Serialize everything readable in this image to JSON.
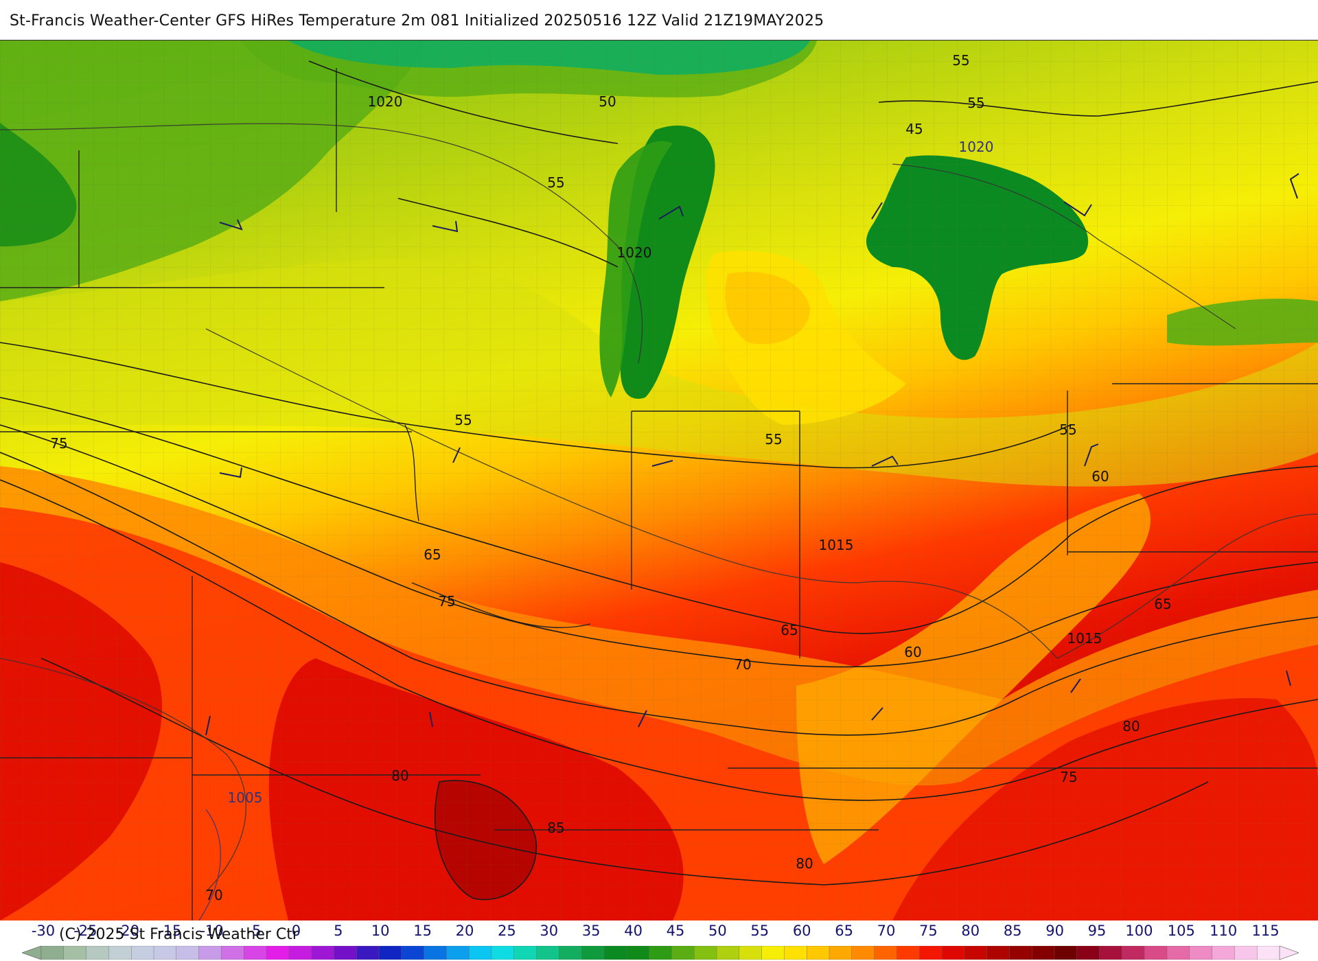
{
  "header": {
    "title": "St-Francis Weather-Center GFS HiRes Temperature 2m  081 Initialized 20250516 12Z Valid 21Z19MAY2025"
  },
  "footer": {
    "copyright": "(C) 2025 St Francis Weather Ctr"
  },
  "legend": {
    "units": "",
    "ticks": [
      "-30",
      "-25",
      "-20",
      "-15",
      "-10",
      "-5",
      "0",
      "5",
      "10",
      "15",
      "20",
      "25",
      "30",
      "35",
      "40",
      "45",
      "50",
      "55",
      "60",
      "65",
      "70",
      "75",
      "80",
      "85",
      "90",
      "95",
      "100",
      "105",
      "110",
      "115"
    ],
    "colors": [
      "#8fae8f",
      "#a5bfa5",
      "#b5c9c0",
      "#c2d0d6",
      "#c5cde0",
      "#c7c8e6",
      "#c6bde8",
      "#c79be8",
      "#cf70e6",
      "#d845e6",
      "#e31ee8",
      "#c61be0",
      "#9e17d4",
      "#7410c8",
      "#3a1ac0",
      "#1125c2",
      "#0b45d4",
      "#0a74e2",
      "#0b9fee",
      "#0cc6f2",
      "#0edce2",
      "#10d6b4",
      "#12c38a",
      "#12ad5e",
      "#0f9a3e",
      "#0c8a22",
      "#108a18",
      "#2e9c14",
      "#5aae14",
      "#84c012",
      "#aed010",
      "#d8e00c",
      "#f6ee06",
      "#ffe000",
      "#ffc800",
      "#ffa800",
      "#ff8a00",
      "#ff6400",
      "#ff3a00",
      "#f31600",
      "#de0800",
      "#c80600",
      "#ae0400",
      "#960200",
      "#840000",
      "#6e0000",
      "#8a0016",
      "#a6103a",
      "#c02a60",
      "#d84a88",
      "#e66aa8",
      "#ee8ac4",
      "#f4a8da",
      "#f8c6ea",
      "#fce2f6"
    ]
  },
  "map": {
    "temperature_labels": [
      {
        "text": "50"
      },
      {
        "text": "55"
      },
      {
        "text": "55"
      },
      {
        "text": "45"
      },
      {
        "text": "55"
      },
      {
        "text": "75"
      },
      {
        "text": "55"
      },
      {
        "text": "55"
      },
      {
        "text": "55"
      },
      {
        "text": "60"
      },
      {
        "text": "65"
      },
      {
        "text": "75"
      },
      {
        "text": "65"
      },
      {
        "text": "70"
      },
      {
        "text": "60"
      },
      {
        "text": "65"
      },
      {
        "text": "80"
      },
      {
        "text": "80"
      },
      {
        "text": "85"
      },
      {
        "text": "80"
      },
      {
        "text": "75"
      },
      {
        "text": "70"
      }
    ],
    "pressure_labels": [
      {
        "text": "1020"
      },
      {
        "text": "1020"
      },
      {
        "text": "1020"
      },
      {
        "text": "1015"
      },
      {
        "text": "1015"
      },
      {
        "text": "1005"
      }
    ]
  }
}
